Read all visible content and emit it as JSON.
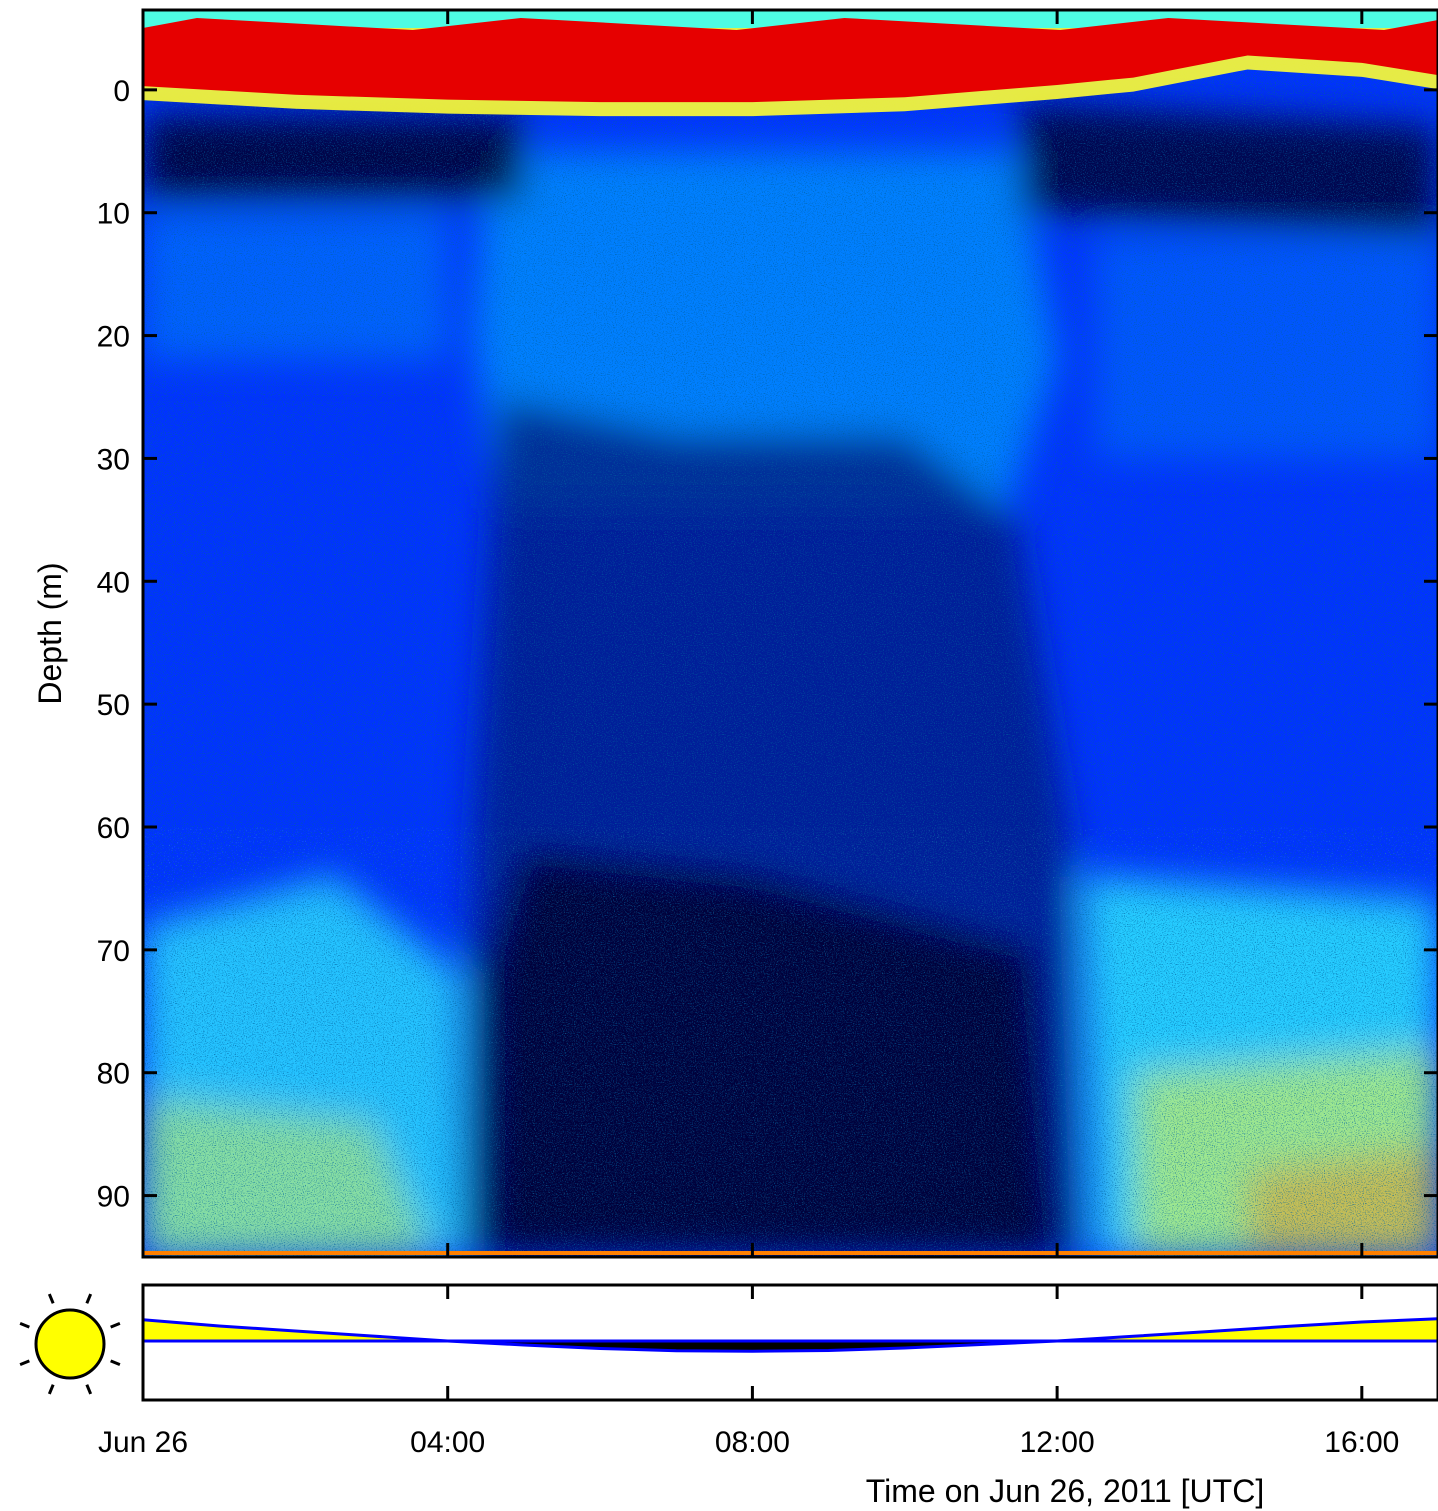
{
  "chart_data": [
    {
      "type": "heatmap",
      "title": "",
      "xlabel": "Time on Jun 26, 2011 [UTC]",
      "ylabel": "Depth (m)",
      "xlim": [
        "00:00",
        "17:00"
      ],
      "ylim": [
        -6.5,
        95
      ],
      "y_reversed": true,
      "x_ticks": [
        "Jun 26",
        "04:00",
        "08:00",
        "12:00",
        "16:00"
      ],
      "y_ticks": [
        0,
        10,
        20,
        30,
        40,
        50,
        60,
        70,
        80,
        90
      ],
      "colormap": [
        "#000033",
        "#001a80",
        "#0033ff",
        "#0099ff",
        "#33ffff",
        "#ffff33",
        "#ff8000",
        "#e60000"
      ],
      "surface_band": {
        "depth_range_m": [
          -6.5,
          1.5
        ],
        "color": "#e60000"
      },
      "grid": false,
      "features": [
        "strong near-surface backscatter band (red) at about 0 m depth",
        "low-backscatter (dark) zone below 60 m between ~04:30 and ~12:00",
        "high backscatter (cyan/yellow) below 65 m before 04:00 and after 12:30"
      ]
    },
    {
      "type": "area",
      "panel": "solar elevation",
      "x": [
        "00:00",
        "01:00",
        "02:00",
        "03:00",
        "04:00",
        "05:00",
        "06:00",
        "07:00",
        "08:00",
        "09:00",
        "10:00",
        "11:00",
        "12:00",
        "13:00",
        "14:00",
        "15:00",
        "16:00",
        "17:00"
      ],
      "values": [
        8.5,
        6.0,
        4.0,
        2.0,
        0.0,
        -1.6,
        -3.0,
        -3.9,
        -4.1,
        -3.8,
        -2.8,
        -1.4,
        0.0,
        1.9,
        3.8,
        5.8,
        7.6,
        8.9
      ],
      "baseline": 0,
      "colors": {
        "positive": "#ffff00",
        "negative": "#000000",
        "line": "#0000ff"
      },
      "icon": "sun-icon"
    }
  ]
}
